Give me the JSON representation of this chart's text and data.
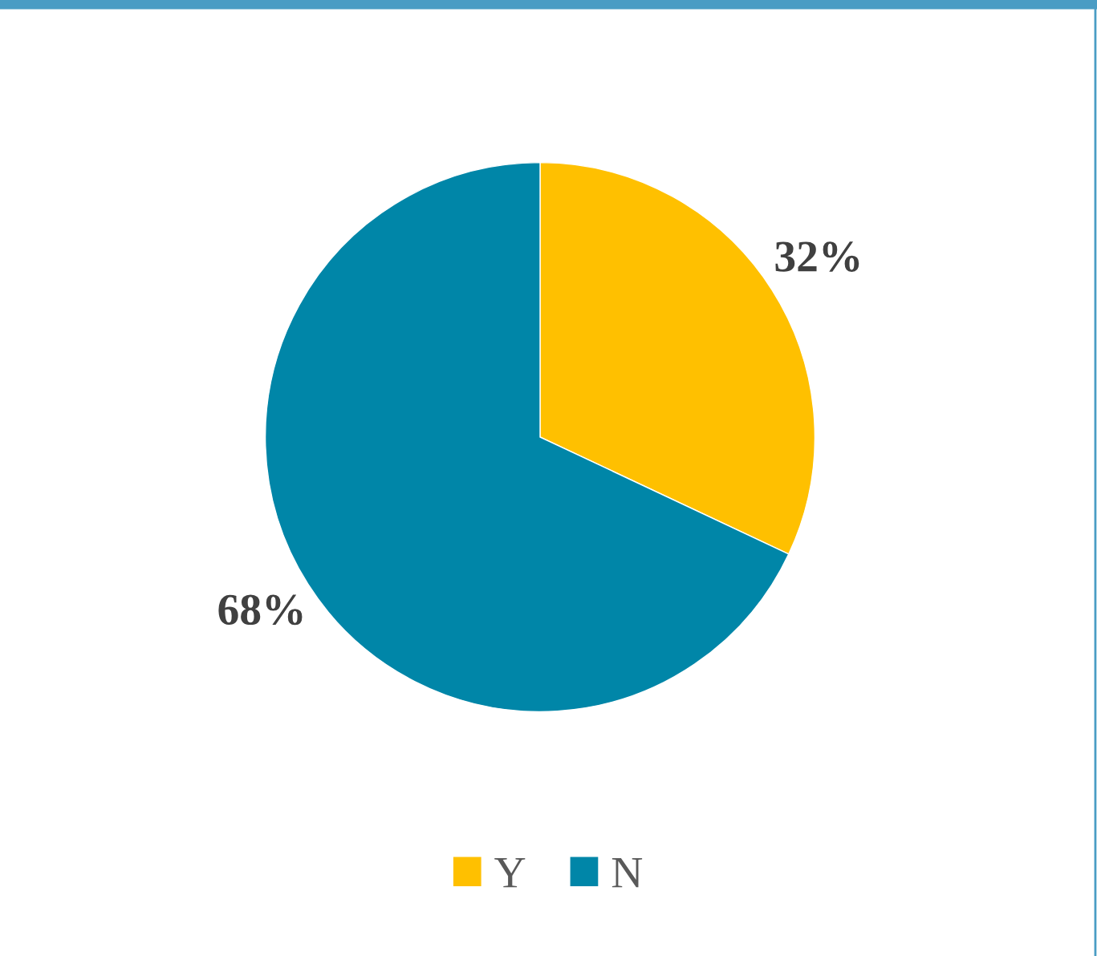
{
  "chart_data": {
    "type": "pie",
    "categories": [
      "Y",
      "N"
    ],
    "values": [
      32,
      68
    ],
    "colors": [
      "#ffc000",
      "#0086a8"
    ],
    "value_labels": [
      "32%",
      "68%"
    ],
    "legend": "bottom"
  }
}
